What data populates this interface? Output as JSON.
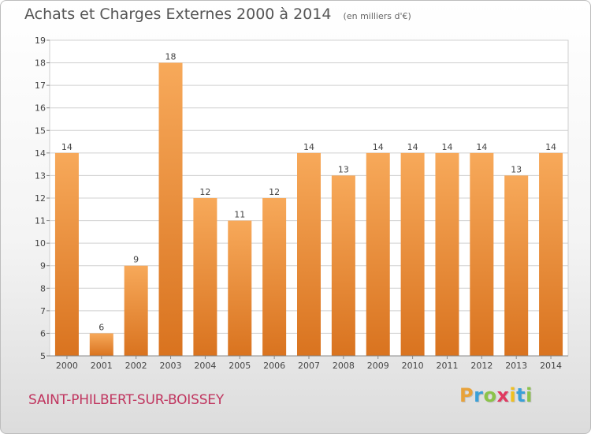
{
  "header": {
    "title": "Achats et Charges Externes 2000 à 2014",
    "unit": "(en milliers d'€)"
  },
  "footer": {
    "commune": "SAINT-PHILBERT-SUR-BOISSEY",
    "brand": "Proxiti"
  },
  "colors": {
    "bar_light": "#f7a95a",
    "bar_dark": "#d9731f",
    "grid": "#d0d0d0",
    "axis_text": "#444444",
    "commune": "#c0355f",
    "brand_letters": [
      "#e8a23a",
      "#3aa0d8",
      "#8bc34a",
      "#e0395f",
      "#f0c020",
      "#3aa0d8",
      "#8bc34a"
    ]
  },
  "chart_data": {
    "type": "bar",
    "title": "Achats et Charges Externes 2000 à 2014",
    "subtitle": "(en milliers d'€)",
    "categories": [
      "2000",
      "2001",
      "2002",
      "2003",
      "2004",
      "2005",
      "2006",
      "2007",
      "2008",
      "2009",
      "2010",
      "2011",
      "2012",
      "2013",
      "2014"
    ],
    "values": [
      14,
      6,
      9,
      18,
      12,
      11,
      12,
      14,
      13,
      14,
      14,
      14,
      14,
      13,
      14
    ],
    "ylim": [
      5,
      19
    ],
    "yticks": [
      5,
      6,
      7,
      8,
      9,
      10,
      11,
      12,
      13,
      14,
      15,
      16,
      17,
      18,
      19
    ],
    "grid": true,
    "legend": "none"
  }
}
